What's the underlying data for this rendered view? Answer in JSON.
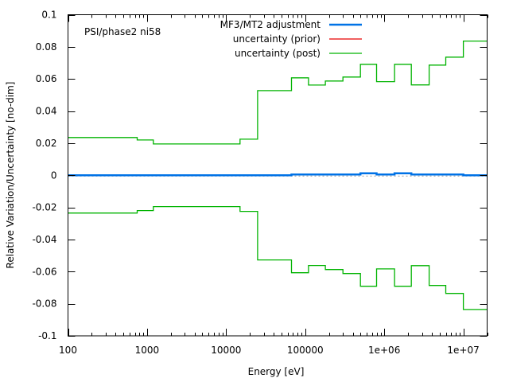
{
  "chart_data": {
    "type": "line",
    "subtype": "step",
    "title": "",
    "annotation": "PSI/phase2 ni58",
    "xlabel": "Energy [eV]",
    "ylabel": "Relative Variation/Uncertainty [no-dim]",
    "xscale": "log",
    "xlim": [
      100,
      20000000
    ],
    "ylim": [
      -0.1,
      0.1
    ],
    "grid": false,
    "legend_position": "top-right",
    "x_ticks": [
      {
        "value": 100,
        "label": "100"
      },
      {
        "value": 1000,
        "label": "1000"
      },
      {
        "value": 10000,
        "label": "10000"
      },
      {
        "value": 100000,
        "label": "100000"
      },
      {
        "value": 1000000,
        "label": "1e+06"
      },
      {
        "value": 10000000,
        "label": "1e+07"
      }
    ],
    "y_ticks": [
      {
        "value": 0.1,
        "label": "0.1"
      },
      {
        "value": 0.08,
        "label": "0.08"
      },
      {
        "value": 0.06,
        "label": "0.06"
      },
      {
        "value": 0.04,
        "label": "0.04"
      },
      {
        "value": 0.02,
        "label": "0.02"
      },
      {
        "value": 0,
        "label": "0"
      },
      {
        "value": -0.02,
        "label": "-0.02"
      },
      {
        "value": -0.04,
        "label": "-0.04"
      },
      {
        "value": -0.06,
        "label": "-0.06"
      },
      {
        "value": -0.08,
        "label": "-0.08"
      },
      {
        "value": -0.1,
        "label": "-0.1"
      }
    ],
    "bin_edges": [
      100,
      750,
      1200,
      15000,
      25000,
      67000,
      110000,
      180000,
      300000,
      500000,
      800000,
      1350000,
      2200000,
      3700000,
      6000000,
      10000000,
      20000000
    ],
    "series": [
      {
        "name": "MF3/MT2 adjustment",
        "color": "#0072e6",
        "values": [
          0,
          0,
          0,
          0,
          0,
          0.0005,
          0.0005,
          0.0005,
          0.0005,
          0.0012,
          0.0005,
          0.0012,
          0.0005,
          0.0005,
          0.0005,
          0
        ]
      },
      {
        "name": "uncertainty (prior)",
        "color": "#e60000",
        "values": []
      },
      {
        "name": "uncertainty (post)",
        "color": "#00b300",
        "mirrored": true,
        "values": [
          0.0235,
          0.022,
          0.0195,
          0.0225,
          0.0527,
          0.0607,
          0.0562,
          0.0587,
          0.0612,
          0.0691,
          0.0583,
          0.0691,
          0.0563,
          0.0686,
          0.0736,
          0.0836
        ]
      }
    ],
    "zero_line_color": "#a0a0a0"
  }
}
